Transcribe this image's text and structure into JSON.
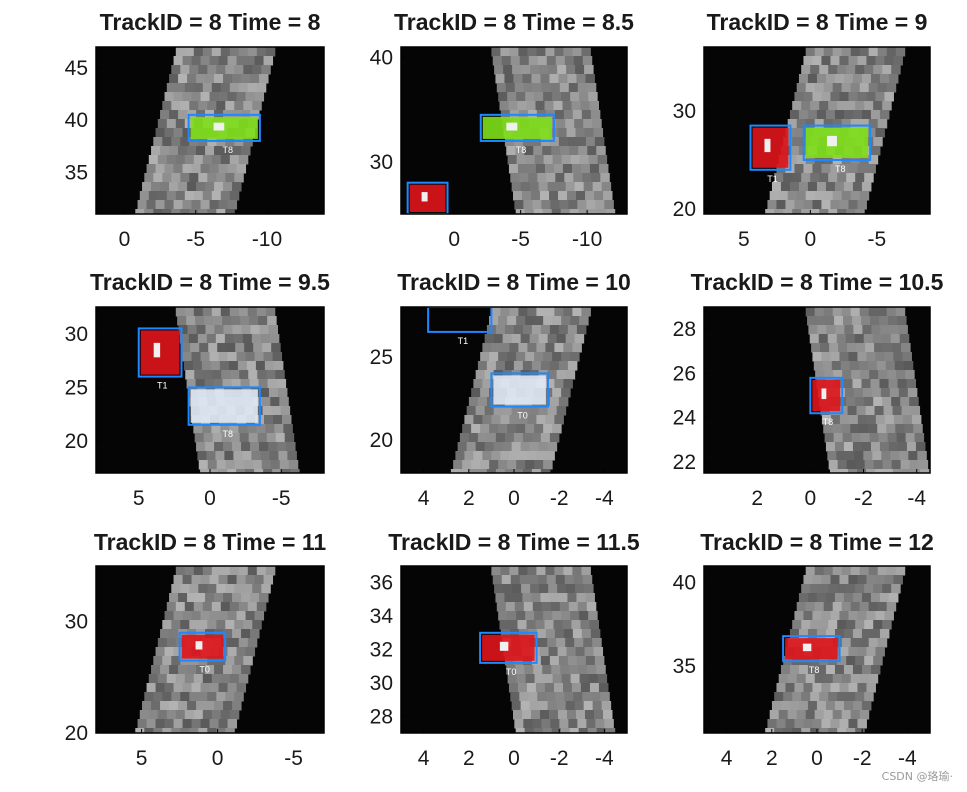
{
  "figure": {
    "background": "#ffffff",
    "colors": {
      "track_box": "#1e88ff",
      "detection_red": "#e0141c",
      "detection_green": "#7ee01a",
      "label_white": "#ffffff",
      "axes_black": "#000000",
      "text": "#1a1a1a"
    }
  },
  "chart_data": [
    {
      "type": "heatmap",
      "title": "TrackID = 8 Time = 8",
      "xticks": [
        "0",
        "-5",
        "-10"
      ],
      "yticks": [
        "45",
        "40",
        "35"
      ],
      "xlim": [
        2,
        -14
      ],
      "ylim": [
        31,
        47
      ],
      "grid": false,
      "boxes": [
        {
          "label": "T8",
          "x": [
            -4.5,
            -9.5
          ],
          "y": [
            38,
            40.5
          ],
          "color": "blue",
          "fill": "green"
        }
      ]
    },
    {
      "type": "heatmap",
      "title": "TrackID = 8 Time = 8.5",
      "xticks": [
        "0",
        "-5",
        "-10"
      ],
      "yticks": [
        "40",
        "30"
      ],
      "xlim": [
        4,
        -13
      ],
      "ylim": [
        25,
        41
      ],
      "grid": false,
      "boxes": [
        {
          "label": "T8",
          "x": [
            -2,
            -7.5
          ],
          "y": [
            32,
            34.5
          ],
          "color": "blue",
          "fill": "green"
        },
        {
          "label": "",
          "x": [
            3.5,
            0.5
          ],
          "y": [
            25,
            28
          ],
          "color": "blue",
          "fill": "red"
        }
      ]
    },
    {
      "type": "heatmap",
      "title": "TrackID = 8 Time = 9",
      "xticks": [
        "5",
        "0",
        "-5"
      ],
      "yticks": [
        "30",
        "20"
      ],
      "xlim": [
        8,
        -9
      ],
      "ylim": [
        19.5,
        36.5
      ],
      "grid": false,
      "boxes": [
        {
          "label": "T1",
          "x": [
            4.5,
            1.5
          ],
          "y": [
            24,
            28.5
          ],
          "color": "blue",
          "fill": "red"
        },
        {
          "label": "T8",
          "x": [
            0.5,
            -4.5
          ],
          "y": [
            25,
            28.5
          ],
          "color": "blue",
          "fill": "green"
        }
      ]
    },
    {
      "type": "heatmap",
      "title": "TrackID = 8 Time = 9.5",
      "xticks": [
        "5",
        "0",
        "-5"
      ],
      "yticks": [
        "30",
        "25",
        "20"
      ],
      "xlim": [
        8,
        -8
      ],
      "ylim": [
        17,
        32.5
      ],
      "grid": false,
      "boxes": [
        {
          "label": "T1",
          "x": [
            5,
            2
          ],
          "y": [
            26,
            30.5
          ],
          "color": "blue",
          "fill": "red"
        },
        {
          "label": "T8",
          "x": [
            1.5,
            -3.5
          ],
          "y": [
            21.5,
            25
          ],
          "color": "blue",
          "fill": "white"
        }
      ]
    },
    {
      "type": "heatmap",
      "title": "TrackID = 8 Time = 10",
      "xticks": [
        "4",
        "2",
        "0",
        "-2",
        "-4"
      ],
      "yticks": [
        "25",
        "20"
      ],
      "xlim": [
        5,
        -5
      ],
      "ylim": [
        18,
        28
      ],
      "grid": false,
      "boxes": [
        {
          "label": "T1",
          "x": [
            3.8,
            1
          ],
          "y": [
            26.5,
            28
          ],
          "color": "blue",
          "fill": "none"
        },
        {
          "label": "T0",
          "x": [
            1,
            -1.5
          ],
          "y": [
            22,
            24
          ],
          "color": "blue",
          "fill": "white"
        }
      ]
    },
    {
      "type": "heatmap",
      "title": "TrackID = 8 Time = 10.5",
      "xticks": [
        "2",
        "0",
        "-2",
        "-4"
      ],
      "yticks": [
        "28",
        "26",
        "24",
        "22"
      ],
      "xlim": [
        4,
        -4.5
      ],
      "ylim": [
        21.5,
        29
      ],
      "grid": false,
      "boxes": [
        {
          "label": "T8",
          "x": [
            0,
            -1.2
          ],
          "y": [
            24.2,
            25.8
          ],
          "color": "blue",
          "fill": "red"
        }
      ]
    },
    {
      "type": "heatmap",
      "title": "TrackID = 8 Time = 11",
      "xticks": [
        "5",
        "0",
        "-5"
      ],
      "yticks": [
        "30",
        "20"
      ],
      "xlim": [
        8,
        -7
      ],
      "ylim": [
        20,
        35
      ],
      "grid": false,
      "boxes": [
        {
          "label": "T0",
          "x": [
            2.5,
            -0.5
          ],
          "y": [
            26.5,
            29
          ],
          "color": "blue",
          "fill": "red"
        }
      ]
    },
    {
      "type": "heatmap",
      "title": "TrackID = 8 Time = 11.5",
      "xticks": [
        "4",
        "2",
        "0",
        "-2",
        "-4"
      ],
      "yticks": [
        "36",
        "34",
        "32",
        "30",
        "28"
      ],
      "xlim": [
        5,
        -5
      ],
      "ylim": [
        27,
        37
      ],
      "grid": false,
      "boxes": [
        {
          "label": "T0",
          "x": [
            1.5,
            -1
          ],
          "y": [
            31.2,
            33
          ],
          "color": "blue",
          "fill": "red"
        }
      ]
    },
    {
      "type": "heatmap",
      "title": "TrackID = 8 Time = 12",
      "xticks": [
        "4",
        "2",
        "0",
        "-2",
        "-4"
      ],
      "yticks": [
        "40",
        "35"
      ],
      "xlim": [
        5,
        -5
      ],
      "ylim": [
        31,
        41
      ],
      "grid": false,
      "boxes": [
        {
          "label": "T8",
          "x": [
            1.5,
            -1
          ],
          "y": [
            35.3,
            36.8
          ],
          "color": "blue",
          "fill": "red"
        }
      ]
    }
  ],
  "watermark": "CSDN @珞瑜·"
}
